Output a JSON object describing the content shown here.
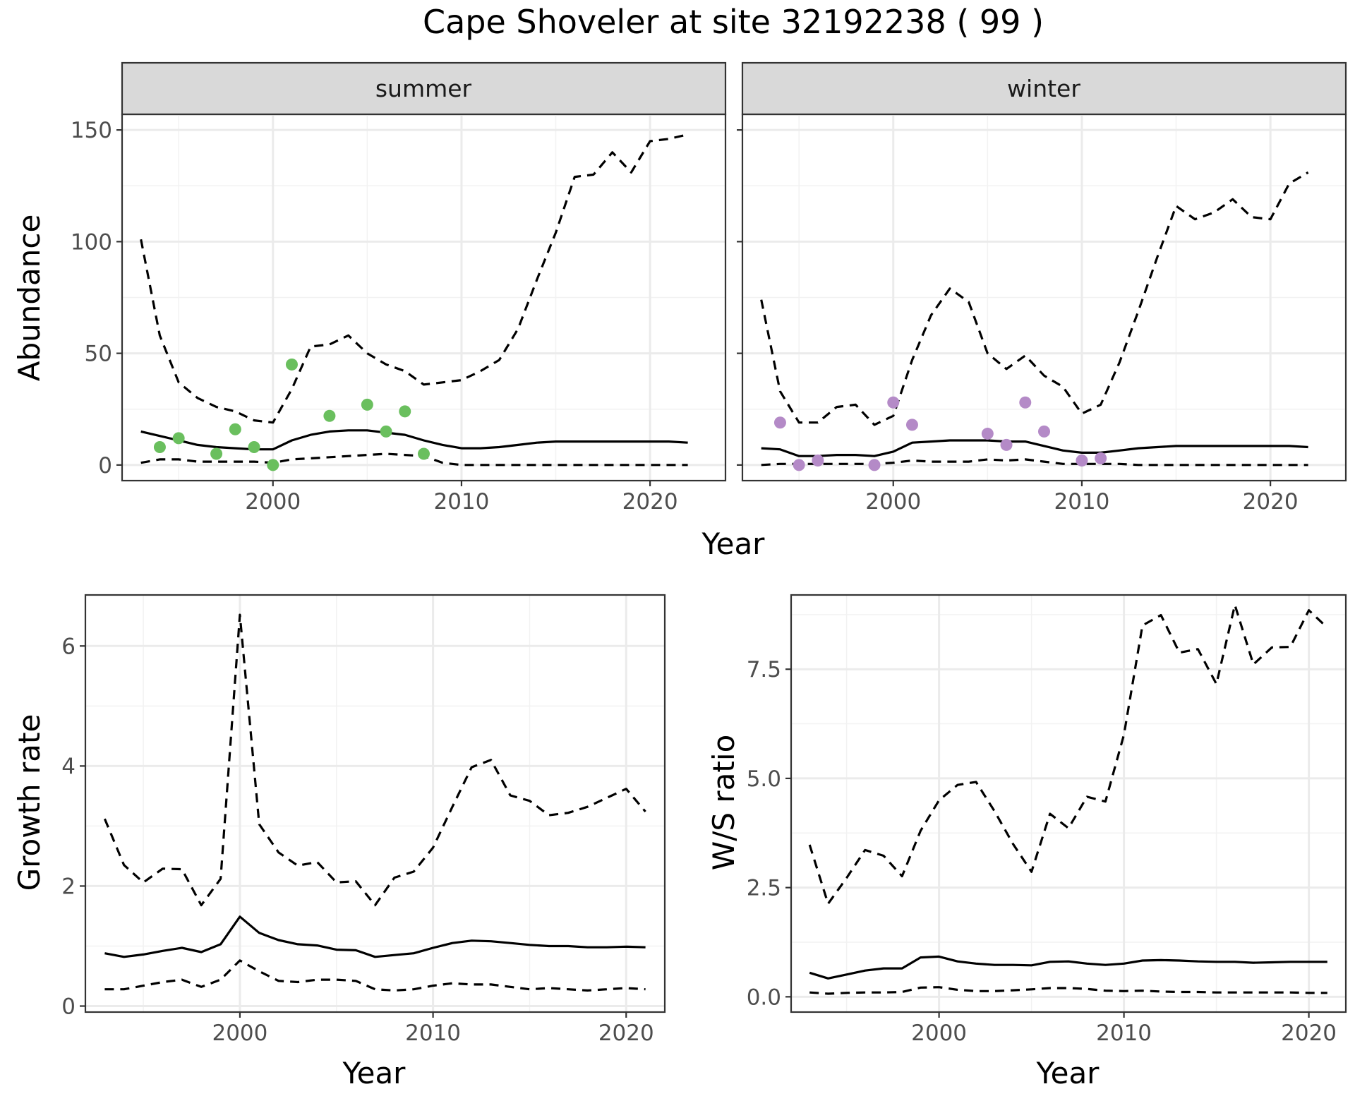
{
  "title": "Cape Shoveler at site 32192238 ( 99 )",
  "colors": {
    "summer_points": "#6abf5e",
    "winter_points": "#b48ac7",
    "lines": "#000000"
  },
  "chart_data": [
    {
      "type": "line",
      "panel": "summer",
      "strip_label": "summer",
      "xlabel": "Year",
      "ylabel": "Abundance",
      "xlim": [
        1992,
        2024
      ],
      "ylim": [
        -7,
        157
      ],
      "xticks": [
        2000,
        2010,
        2020
      ],
      "yticks": [
        0,
        50,
        100,
        150
      ],
      "grid": true,
      "x": [
        1993,
        1994,
        1995,
        1996,
        1997,
        1998,
        1999,
        2000,
        2001,
        2002,
        2003,
        2004,
        2005,
        2006,
        2007,
        2008,
        2009,
        2010,
        2011,
        2012,
        2013,
        2014,
        2015,
        2016,
        2017,
        2018,
        2019,
        2020,
        2021,
        2022
      ],
      "series": [
        {
          "role": "mean",
          "style": "solid",
          "values": [
            15,
            13,
            11,
            9,
            8,
            7.5,
            7,
            7,
            11,
            13.5,
            15,
            15.5,
            15.5,
            14.5,
            13.5,
            11,
            9,
            7.5,
            7.5,
            8,
            9,
            10,
            10.5,
            10.5,
            10.5,
            10.5,
            10.5,
            10.5,
            10.5,
            10
          ]
        },
        {
          "role": "upper",
          "style": "dashed",
          "values": [
            101,
            58,
            37,
            30,
            26,
            24,
            20,
            19,
            34,
            53,
            54,
            58,
            50,
            45,
            42,
            36,
            37,
            38,
            42,
            47,
            61,
            83,
            104,
            129,
            130,
            140,
            131,
            145,
            146,
            148
          ]
        },
        {
          "role": "lower",
          "style": "dashed",
          "values": [
            1,
            2.5,
            2.5,
            1.5,
            1.5,
            1.5,
            1.5,
            1,
            2.5,
            3,
            3.5,
            4,
            4.5,
            5,
            4.5,
            4,
            1,
            0,
            0,
            0,
            0,
            0,
            0,
            0,
            0,
            0,
            0,
            0,
            0,
            0
          ]
        }
      ],
      "points": {
        "x": [
          1994,
          1995,
          1997,
          1998,
          1999,
          2000,
          2001,
          2003,
          2005,
          2006,
          2007,
          2008
        ],
        "y": [
          8,
          12,
          5,
          16,
          8,
          0,
          45,
          22,
          27,
          15,
          24,
          5
        ]
      }
    },
    {
      "type": "line",
      "panel": "winter",
      "strip_label": "winter",
      "xlabel": "Year",
      "ylabel": "Abundance",
      "xlim": [
        1992,
        2024
      ],
      "ylim": [
        -7,
        157
      ],
      "xticks": [
        2000,
        2010,
        2020
      ],
      "yticks": [
        0,
        50,
        100,
        150
      ],
      "grid": true,
      "x": [
        1993,
        1994,
        1995,
        1996,
        1997,
        1998,
        1999,
        2000,
        2001,
        2002,
        2003,
        2004,
        2005,
        2006,
        2007,
        2008,
        2009,
        2010,
        2011,
        2012,
        2013,
        2014,
        2015,
        2016,
        2017,
        2018,
        2019,
        2020,
        2021,
        2022
      ],
      "series": [
        {
          "role": "mean",
          "style": "solid",
          "values": [
            7.5,
            7,
            4,
            4,
            4.5,
            4.5,
            4,
            6,
            10,
            10.5,
            11,
            11,
            11,
            10.5,
            10.5,
            8.5,
            6.5,
            5.5,
            5.5,
            6.5,
            7.5,
            8,
            8.5,
            8.5,
            8.5,
            8.5,
            8.5,
            8.5,
            8.5,
            8
          ]
        },
        {
          "role": "upper",
          "style": "dashed",
          "values": [
            74,
            33,
            19,
            19,
            26,
            27,
            18,
            22,
            47,
            67,
            79,
            73,
            50,
            43,
            49,
            40,
            35,
            23,
            27,
            46,
            69,
            93,
            116,
            110,
            113,
            119,
            111,
            110,
            126,
            131
          ]
        },
        {
          "role": "lower",
          "style": "dashed",
          "values": [
            0,
            0.5,
            0.5,
            0.5,
            0.5,
            0.5,
            0.5,
            1,
            2,
            1.5,
            1.5,
            1.5,
            2.5,
            2,
            2.5,
            1.5,
            0.5,
            0.5,
            0.5,
            0.5,
            0,
            0,
            0,
            0,
            0,
            0,
            0,
            0,
            0,
            0
          ]
        }
      ],
      "points": {
        "x": [
          1994,
          1995,
          1996,
          1999,
          2000,
          2001,
          2005,
          2006,
          2007,
          2008,
          2010,
          2011
        ],
        "y": [
          19,
          0,
          2,
          0,
          28,
          18,
          14,
          9,
          28,
          15,
          2,
          3
        ]
      }
    },
    {
      "type": "line",
      "panel": "growth",
      "xlabel": "Year",
      "ylabel": "Growth rate",
      "xlim": [
        1992,
        2022
      ],
      "ylim": [
        -0.1,
        6.85
      ],
      "xticks": [
        2000,
        2010,
        2020
      ],
      "yticks": [
        0,
        2,
        4,
        6
      ],
      "grid": true,
      "x": [
        1993,
        1994,
        1995,
        1996,
        1997,
        1998,
        1999,
        2000,
        2001,
        2002,
        2003,
        2004,
        2005,
        2006,
        2007,
        2008,
        2009,
        2010,
        2011,
        2012,
        2013,
        2014,
        2015,
        2016,
        2017,
        2018,
        2019,
        2020,
        2021
      ],
      "series": [
        {
          "role": "mean",
          "style": "solid",
          "values": [
            0.88,
            0.82,
            0.86,
            0.92,
            0.97,
            0.9,
            1.03,
            1.49,
            1.22,
            1.1,
            1.03,
            1.01,
            0.94,
            0.93,
            0.82,
            0.85,
            0.88,
            0.97,
            1.05,
            1.09,
            1.08,
            1.05,
            1.02,
            1.0,
            1.0,
            0.98,
            0.98,
            0.99,
            0.98
          ]
        },
        {
          "role": "upper",
          "style": "dashed",
          "values": [
            3.12,
            2.35,
            2.06,
            2.29,
            2.28,
            1.68,
            2.12,
            6.52,
            3.03,
            2.56,
            2.34,
            2.4,
            2.06,
            2.08,
            1.68,
            2.14,
            2.24,
            2.64,
            3.32,
            3.98,
            4.1,
            3.51,
            3.42,
            3.18,
            3.22,
            3.32,
            3.47,
            3.62,
            3.24
          ]
        },
        {
          "role": "lower",
          "style": "dashed",
          "values": [
            0.28,
            0.28,
            0.34,
            0.4,
            0.44,
            0.32,
            0.44,
            0.76,
            0.58,
            0.42,
            0.4,
            0.44,
            0.44,
            0.42,
            0.28,
            0.26,
            0.28,
            0.34,
            0.38,
            0.36,
            0.36,
            0.32,
            0.28,
            0.3,
            0.28,
            0.26,
            0.28,
            0.3,
            0.28
          ]
        }
      ]
    },
    {
      "type": "line",
      "panel": "ratio",
      "xlabel": "Year",
      "ylabel": "W/S ratio",
      "xlim": [
        1992,
        2022
      ],
      "ylim": [
        -0.35,
        9.2
      ],
      "xticks": [
        2000,
        2010,
        2020
      ],
      "ytick_labels": [
        "0.0",
        "2.5",
        "5.0",
        "7.5"
      ],
      "yticks": [
        0,
        2.5,
        5,
        7.5
      ],
      "grid": true,
      "x": [
        1993,
        1994,
        1995,
        1996,
        1997,
        1998,
        1999,
        2000,
        2001,
        2002,
        2003,
        2004,
        2005,
        2006,
        2007,
        2008,
        2009,
        2010,
        2011,
        2012,
        2013,
        2014,
        2015,
        2016,
        2017,
        2018,
        2019,
        2020,
        2021
      ],
      "series": [
        {
          "role": "mean",
          "style": "solid",
          "values": [
            0.55,
            0.42,
            0.51,
            0.6,
            0.65,
            0.65,
            0.9,
            0.92,
            0.81,
            0.76,
            0.73,
            0.73,
            0.72,
            0.8,
            0.81,
            0.76,
            0.73,
            0.76,
            0.83,
            0.84,
            0.83,
            0.81,
            0.8,
            0.8,
            0.78,
            0.79,
            0.8,
            0.8,
            0.8
          ]
        },
        {
          "role": "upper",
          "style": "dashed",
          "values": [
            3.48,
            2.13,
            2.72,
            3.36,
            3.23,
            2.76,
            3.8,
            4.5,
            4.85,
            4.92,
            4.25,
            3.5,
            2.86,
            4.19,
            3.86,
            4.58,
            4.47,
            6.0,
            8.5,
            8.74,
            7.88,
            7.96,
            7.16,
            8.97,
            7.61,
            8.0,
            8.01,
            8.85,
            8.45
          ]
        },
        {
          "role": "lower",
          "style": "dashed",
          "values": [
            0.1,
            0.07,
            0.09,
            0.1,
            0.1,
            0.11,
            0.21,
            0.22,
            0.16,
            0.13,
            0.13,
            0.15,
            0.17,
            0.2,
            0.2,
            0.18,
            0.14,
            0.13,
            0.14,
            0.12,
            0.11,
            0.11,
            0.1,
            0.1,
            0.1,
            0.1,
            0.1,
            0.09,
            0.09
          ]
        }
      ]
    }
  ]
}
